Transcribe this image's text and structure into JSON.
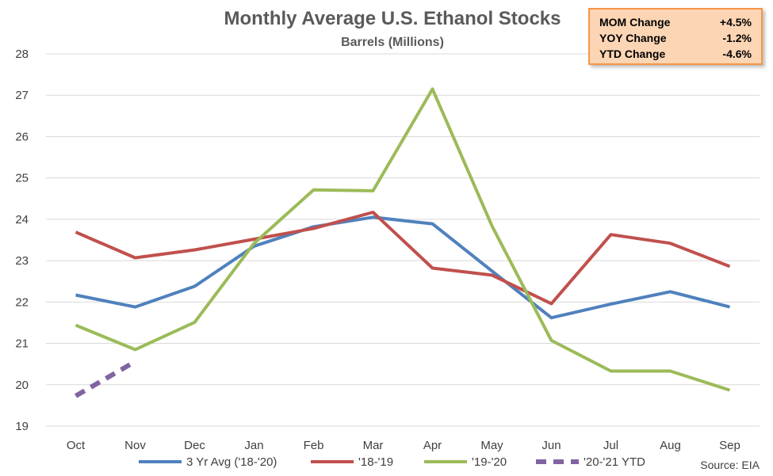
{
  "chart_data": {
    "type": "line",
    "title": "Monthly Average U.S. Ethanol Stocks",
    "subtitle": "Barrels (Millions)",
    "categories": [
      "Oct",
      "Nov",
      "Dec",
      "Jan",
      "Feb",
      "Mar",
      "Apr",
      "May",
      "Jun",
      "Jul",
      "Aug",
      "Sep"
    ],
    "ylim": [
      19,
      28
    ],
    "yticks": [
      19,
      20,
      21,
      22,
      23,
      24,
      25,
      26,
      27,
      28
    ],
    "grid": true,
    "legend_position": "bottom",
    "series": [
      {
        "name": "3 Yr Avg ('18-'20)",
        "color": "#4f81bd",
        "dashed": false,
        "values": [
          22.17,
          21.88,
          22.38,
          23.35,
          23.82,
          24.05,
          23.89,
          22.75,
          21.62,
          21.95,
          22.25,
          21.88
        ]
      },
      {
        "name": "'18-'19",
        "color": "#c0504d",
        "dashed": false,
        "values": [
          23.69,
          23.07,
          23.26,
          23.52,
          23.78,
          24.17,
          22.82,
          22.65,
          21.96,
          23.63,
          23.42,
          22.86
        ]
      },
      {
        "name": "'19-'20",
        "color": "#9bbb59",
        "dashed": false,
        "values": [
          21.44,
          20.85,
          21.51,
          23.42,
          24.71,
          24.69,
          27.15,
          23.84,
          21.07,
          20.33,
          20.33,
          19.87
        ]
      },
      {
        "name": "'20-'21 YTD",
        "color": "#8064a2",
        "dashed": true,
        "values": [
          19.73,
          20.56,
          null,
          null,
          null,
          null,
          null,
          null,
          null,
          null,
          null,
          null
        ]
      }
    ],
    "source": "Source: EIA"
  },
  "stats": [
    {
      "label": "MOM Change",
      "value": "+4.5%"
    },
    {
      "label": "YOY Change",
      "value": "-1.2%"
    },
    {
      "label": "YTD Change",
      "value": "-4.6%"
    }
  ]
}
